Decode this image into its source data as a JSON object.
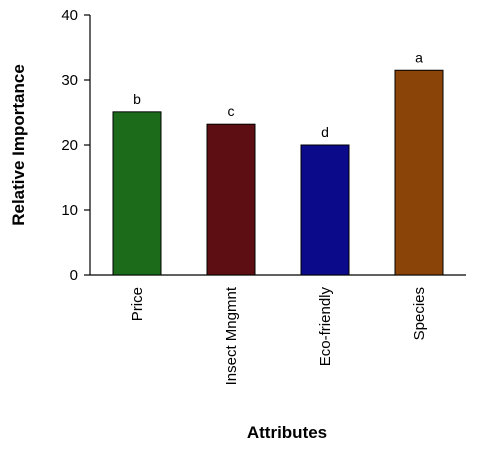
{
  "chart_data": {
    "type": "bar",
    "title": "",
    "xlabel": "Attributes",
    "ylabel": "Relative Importance",
    "categories": [
      "Price",
      "Insect Mngmnt",
      "Eco-friendly",
      "Species"
    ],
    "values": [
      25.1,
      23.2,
      20.0,
      31.5
    ],
    "bar_letters": [
      "b",
      "c",
      "d",
      "a"
    ],
    "bar_colors": [
      "#1b6b1b",
      "#5c0e12",
      "#0a0a8a",
      "#8a4407"
    ],
    "ylim": [
      0,
      40
    ],
    "yticks": [
      0,
      10,
      20,
      30,
      40
    ],
    "grid": false,
    "legend": "none"
  }
}
